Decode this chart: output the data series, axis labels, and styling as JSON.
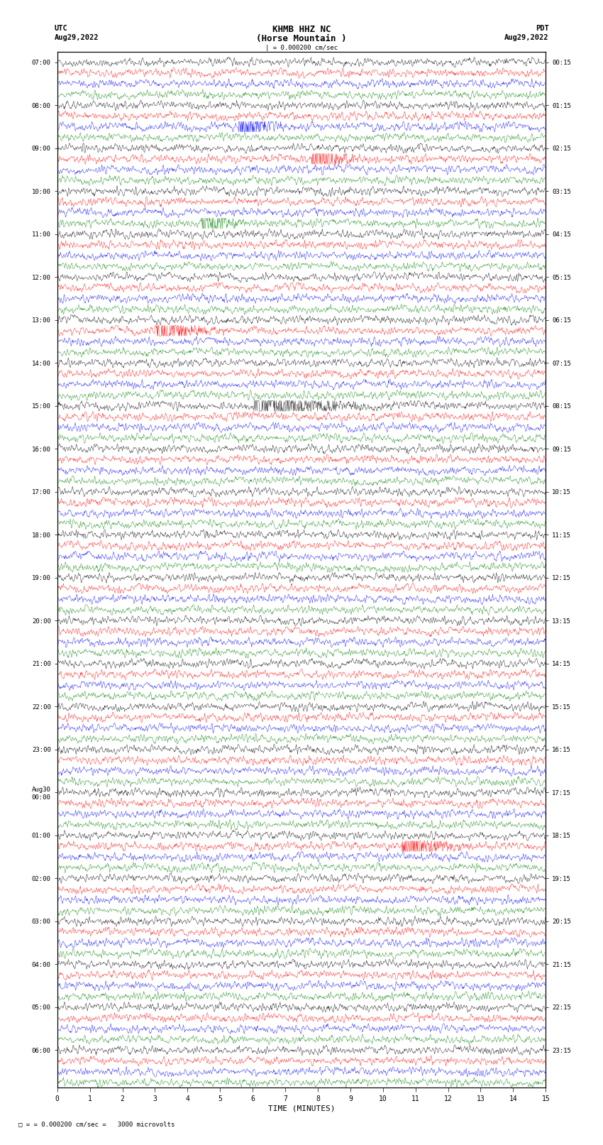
{
  "title_line1": "KHMB HHZ NC",
  "title_line2": "(Horse Mountain )",
  "scale_text": "| = 0.000200 cm/sec",
  "left_label": "UTC",
  "left_date": "Aug29,2022",
  "right_label": "PDT",
  "right_date": "Aug29,2022",
  "xlabel": "TIME (MINUTES)",
  "scale_annotation": "= 0.000200 cm/sec =   3000 microvolts",
  "xmin": 0,
  "xmax": 15,
  "colors": [
    "black",
    "red",
    "blue",
    "green"
  ],
  "utc_times_full": [
    "07:00",
    "08:00",
    "09:00",
    "10:00",
    "11:00",
    "12:00",
    "13:00",
    "14:00",
    "15:00",
    "16:00",
    "17:00",
    "18:00",
    "19:00",
    "20:00",
    "21:00",
    "22:00",
    "23:00",
    "Aug30\n00:00",
    "01:00",
    "02:00",
    "03:00",
    "04:00",
    "05:00",
    "06:00"
  ],
  "pdt_times_full": [
    "00:15",
    "01:15",
    "02:15",
    "03:15",
    "04:15",
    "05:15",
    "06:15",
    "07:15",
    "08:15",
    "09:15",
    "10:15",
    "11:15",
    "12:15",
    "13:15",
    "14:15",
    "15:15",
    "16:15",
    "17:15",
    "18:15",
    "19:15",
    "20:15",
    "21:15",
    "22:15",
    "23:15"
  ],
  "n_rows": 96,
  "noise_amp": 0.3,
  "figure_width": 8.5,
  "figure_height": 16.13,
  "dpi": 100
}
